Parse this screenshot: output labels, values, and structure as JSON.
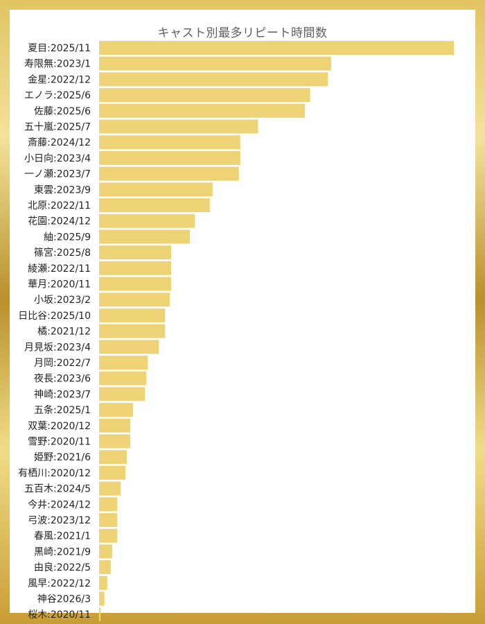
{
  "chart_data": {
    "type": "bar",
    "orientation": "horizontal",
    "title": "キャスト別最多リピート時間数",
    "categories": [
      "夏目:2025/11",
      "寿限無:2023/1",
      "金星:2022/12",
      "エノラ:2025/6",
      "佐藤:2025/6",
      "五十嵐:2025/7",
      "斎藤:2024/12",
      "小日向:2023/4",
      "一ノ瀬:2023/7",
      "東雲:2023/9",
      "北原:2022/11",
      "花園:2024/12",
      "紬:2025/9",
      "篠宮:2025/8",
      "綾瀬:2022/11",
      "華月:2020/11",
      "小坂:2023/2",
      "日比谷:2025/10",
      "橘:2021/12",
      "月見坂:2023/4",
      "月岡:2022/7",
      "夜長:2023/6",
      "神崎:2023/7",
      "五条:2025/1",
      "双葉:2020/12",
      "雪野:2020/11",
      "姫野:2021/6",
      "有栖川:2020/12",
      "五百木:2024/5",
      "今井:2024/12",
      "弓波:2023/12",
      "春風:2021/1",
      "黒崎:2021/9",
      "由良:2022/5",
      "風早:2022/12",
      "神谷2026/3",
      "桜木:2020/11"
    ],
    "values": [
      100,
      65.4,
      64.5,
      59.5,
      58.0,
      44.8,
      39.8,
      39.8,
      39.4,
      32.0,
      31.2,
      27.0,
      25.6,
      20.3,
      20.3,
      20.3,
      19.9,
      18.6,
      18.6,
      16.8,
      13.7,
      13.3,
      12.9,
      9.6,
      8.8,
      8.8,
      7.8,
      7.4,
      6.1,
      5.1,
      5.1,
      5.1,
      3.7,
      3.3,
      2.3,
      1.5,
      0.4
    ],
    "xlim": [
      0,
      100
    ],
    "grid": false,
    "legend": "none",
    "colors": {
      "bar": "#edd376",
      "title": "#5f5f5f",
      "label": "#222222",
      "panel": "#ffffff"
    }
  }
}
